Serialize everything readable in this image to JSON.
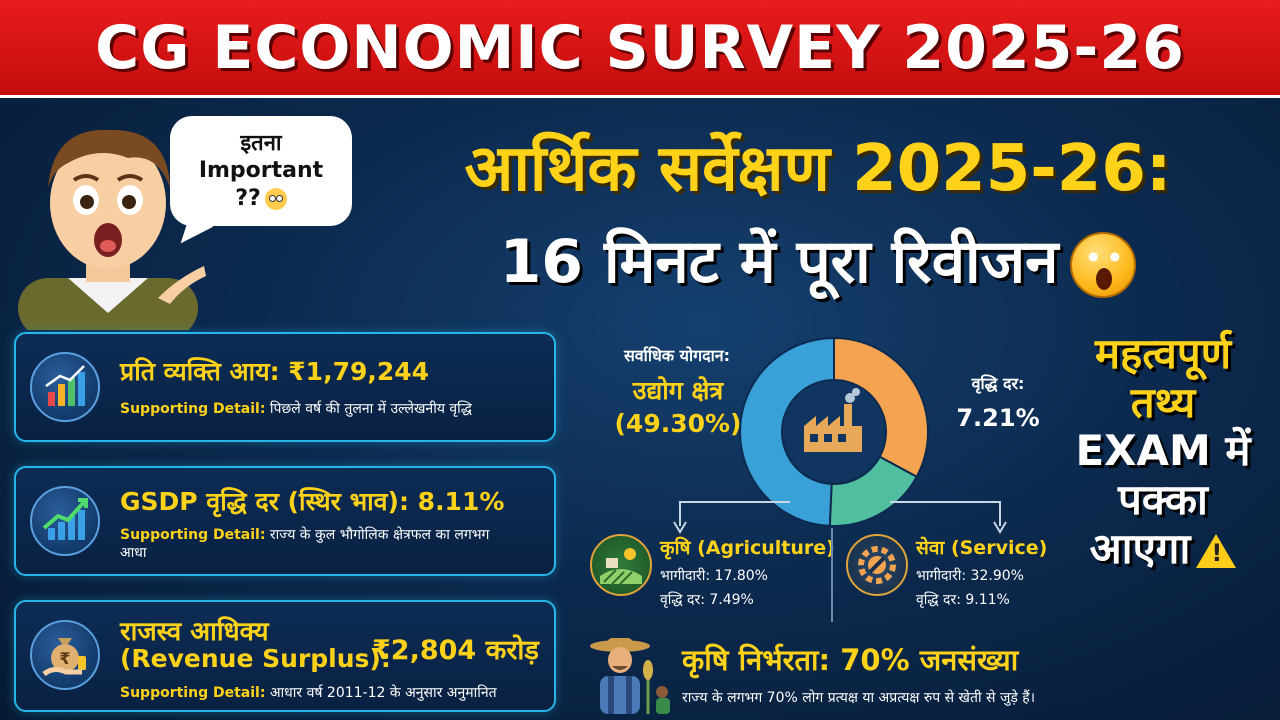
{
  "banner": {
    "title": "CG ECONOMIC SURVEY 2025-26"
  },
  "speech": {
    "line1": "इतना",
    "line2": "Important",
    "line3": "??"
  },
  "headline": {
    "line1": "आर्थिक सर्वेक्षण 2025-26:",
    "line2": "16 मिनट में पूरा रिवीजन"
  },
  "cards": [
    {
      "title": "प्रति व्यक्ति आय: ₹1,79,244",
      "detail_label": "Supporting Detail:",
      "detail": "पिछले वर्ष की तुलना में उल्लेखनीय वृद्धि",
      "icon": "bar-chart-icon"
    },
    {
      "title": "GSDP वृद्धि दर (स्थिर भाव): 8.11%",
      "detail_label": "Supporting Detail:",
      "detail": "राज्य के कुल भौगोलिक क्षेत्रफल का लगभग आधा",
      "icon": "growth-chart-icon"
    },
    {
      "title_line1": "राजस्व आधिक्य",
      "title_line2": "(Revenue Surplus):",
      "amount": "₹2,804 करोड़",
      "detail_label": "Supporting Detail:",
      "detail": "आधार वर्ष 2011-12 के अनुसार अनुमानित",
      "icon": "money-bag-icon"
    }
  ],
  "chart_data": {
    "type": "pie",
    "categories": [
      "उद्योग क्षेत्र",
      "सेवा (Service)",
      "कृषि (Agriculture)"
    ],
    "values": [
      49.3,
      32.9,
      17.8
    ],
    "colors": [
      "#3aa0d8",
      "#f4a350",
      "#4fbf9f"
    ],
    "labels": {
      "top_label": "सर्वाधिक योगदान:",
      "industry": "उद्योग क्षेत्र",
      "industry_pct": "(49.30%)",
      "growth_label": "वृद्धि दर:",
      "growth_value": "7.21%"
    }
  },
  "sectors": {
    "agri": {
      "title": "कृषि (Agriculture)",
      "share": "भागीदारी: 17.80%",
      "growth": "वृद्धि दर: 7.49%"
    },
    "service": {
      "title": "सेवा (Service)",
      "share": "भागीदारी: 32.90%",
      "growth": "वृद्धि दर: 9.11%"
    }
  },
  "dependence": {
    "title": "कृषि निर्भरता: 70% जनसंख्या",
    "detail": "राज्य के लगभग 70% लोग प्रत्यक्ष या अप्रत्यक्ष रुप से खेती से जुड़े हैं।"
  },
  "side": {
    "line1": "महत्वपूर्ण",
    "line2": "तथ्य",
    "line3": "EXAM में",
    "line4": "पक्का",
    "line5": "आएगा"
  }
}
